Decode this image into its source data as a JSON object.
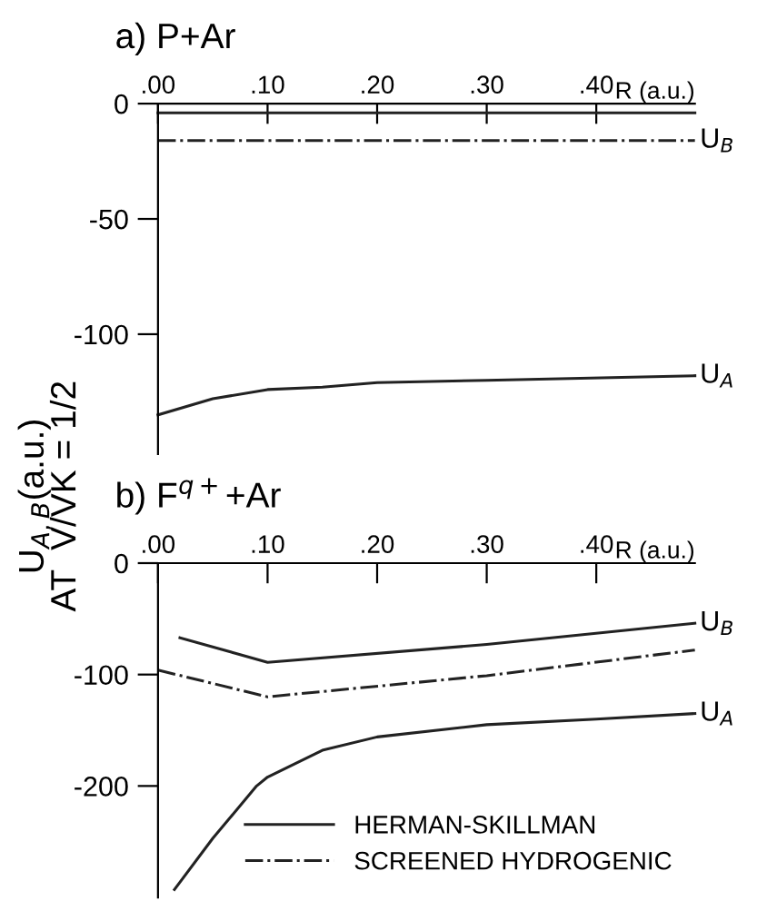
{
  "chart_data": [
    {
      "type": "line",
      "title": "a) P+Ar",
      "xlabel": "R (a.u.)",
      "ylabel": "U$_{A,B}$(a.u.)\nAT  V/VK = 1/2",
      "xlim": [
        0,
        0.49
      ],
      "xticks": [
        {
          "value": 0,
          "label": ".00"
        },
        {
          "value": 0.1,
          "label": ".10"
        },
        {
          "value": 0.2,
          "label": ".20"
        },
        {
          "value": 0.3,
          "label": ".30"
        },
        {
          "value": 0.4,
          "label": ".40"
        }
      ],
      "ylim": [
        -152,
        0
      ],
      "yticks": [
        0,
        -50,
        -100
      ],
      "grid": false,
      "legend": false,
      "marker": "none",
      "series": [
        {
          "color": "#222222",
          "line_style": "solid",
          "x": [
            0,
            0.49
          ],
          "values": [
            -4,
            -4
          ]
        },
        {
          "color": "#222222",
          "line_style": "dashdot",
          "x": [
            0,
            0.49
          ],
          "values": [
            -16,
            -16
          ]
        },
        {
          "color": "#222222",
          "line_style": "solid",
          "x": [
            0,
            0.05,
            0.1,
            0.15,
            0.2,
            0.3,
            0.49
          ],
          "values": [
            -135,
            -128,
            -124,
            -123,
            -121,
            -120,
            -118
          ]
        }
      ],
      "annotations": [
        "U$_{B}$",
        "U$_{A}$"
      ]
    },
    {
      "type": "line",
      "title": "b) F$^{q+}$+Ar",
      "xlabel": "R (a.u.)",
      "xlim": [
        0,
        0.49
      ],
      "xticks": [
        {
          "value": 0,
          "label": ".00"
        },
        {
          "value": 0.1,
          "label": ".10"
        },
        {
          "value": 0.2,
          "label": ".20"
        },
        {
          "value": 0.3,
          "label": ".30"
        },
        {
          "value": 0.4,
          "label": ".40"
        }
      ],
      "ylim": [
        -300,
        0
      ],
      "yticks": [
        0,
        -100,
        -200
      ],
      "grid": false,
      "legend": "bottom right",
      "marker": "none",
      "series": [
        {
          "name": "HERMAN-SKILLMAN",
          "color": "#222222",
          "line_style": "solid",
          "x": [
            0.02,
            0.1,
            0.3,
            0.49
          ],
          "values": [
            -67,
            -89,
            -73,
            -54
          ]
        },
        {
          "name": "SCREENED HYDROGENIC",
          "color": "#222222",
          "line_style": "dashdot",
          "x": [
            0,
            0.1,
            0.3,
            0.49
          ],
          "values": [
            -96,
            -120,
            -101,
            -78
          ]
        },
        {
          "color": "#222222",
          "line_style": "solid",
          "x": [
            0.015,
            0.05,
            0.09,
            0.1,
            0.15,
            0.2,
            0.3,
            0.4,
            0.49
          ],
          "values": [
            -293,
            -247,
            -200,
            -192,
            -168,
            -156,
            -145,
            -140,
            -135
          ]
        }
      ],
      "annotations": [
        "U$_{B}$",
        "U$_{A}$"
      ]
    }
  ]
}
